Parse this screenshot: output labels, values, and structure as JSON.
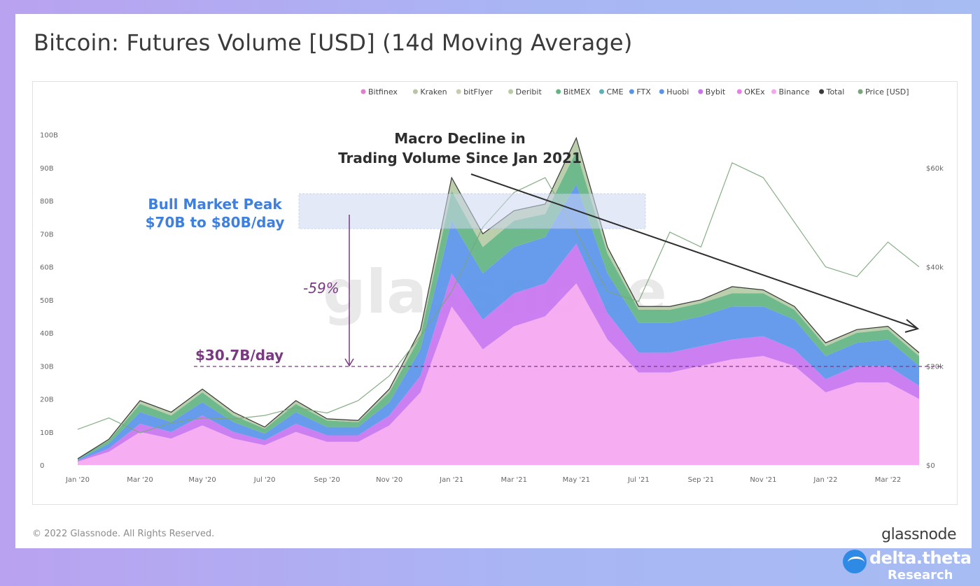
{
  "title": "Bitcoin: Futures Volume [USD] (14d Moving Average)",
  "footer": {
    "copyright": "© 2022 Glassnode. All Rights Reserved.",
    "brand": "glassnode"
  },
  "watermark": {
    "text": "glassnode"
  },
  "overlay_logo": {
    "name": "delta.theta",
    "sub": "Research"
  },
  "annotations": {
    "macro_decline_line1": "Macro Decline in",
    "macro_decline_line2": "Trading Volume Since Jan 2021",
    "bull_peak_line1": "Bull Market Peak",
    "bull_peak_line2": "$70B to $80B/day",
    "drop_pct": "-59%",
    "current_level": "$30.7B/day"
  },
  "colors": {
    "Bitfinex": "#e07fd0",
    "Kraken": "#b8c6a6",
    "bitFlyer": "#c8ccae",
    "Deribit": "#b6cba6",
    "BitMEX": "#62b483",
    "CME": "#5eb0b8",
    "FTX": "#5a93ea",
    "Huobi": "#5a93ea",
    "Bybit": "#c874f0",
    "OKEx": "#e87fe8",
    "Binance": "#f6a6f0",
    "Total": "#3a3a3a",
    "Price [USD]": "#7aa57a"
  },
  "chart_data": {
    "type": "area",
    "stacked": true,
    "legend": [
      "Bitfinex",
      "Kraken",
      "bitFlyer",
      "Deribit",
      "BitMEX",
      "CME",
      "FTX",
      "Huobi",
      "Bybit",
      "OKEx",
      "Binance",
      "Total",
      "Price [USD]"
    ],
    "legend_position": "top-right",
    "x_ticks": [
      "Jan '20",
      "Mar '20",
      "May '20",
      "Jul '20",
      "Sep '20",
      "Nov '20",
      "Jan '21",
      "Mar '21",
      "May '21",
      "Jul '21",
      "Sep '21",
      "Nov '21",
      "Jan '22",
      "Mar '22"
    ],
    "y_ticks": [
      "0",
      "10B",
      "20B",
      "30B",
      "40B",
      "50B",
      "60B",
      "70B",
      "80B",
      "90B",
      "100B"
    ],
    "y2_ticks": [
      "$0",
      "$20k",
      "$40k",
      "$60k"
    ],
    "ylim": [
      0,
      105
    ],
    "y2lim": [
      0,
      70
    ],
    "x": [
      "2020-01",
      "2020-02",
      "2020-03",
      "2020-04",
      "2020-05",
      "2020-06",
      "2020-07",
      "2020-08",
      "2020-09",
      "2020-10",
      "2020-11",
      "2020-12",
      "2021-01",
      "2021-02",
      "2021-03",
      "2021-04",
      "2021-05",
      "2021-06",
      "2021-07",
      "2021-08",
      "2021-09",
      "2021-10",
      "2021-11",
      "2021-12",
      "2022-01",
      "2022-02",
      "2022-03",
      "2022-04"
    ],
    "series": [
      {
        "name": "Binance",
        "values": [
          1,
          4,
          10,
          8,
          12,
          8,
          6,
          10,
          7,
          7,
          12,
          22,
          48,
          35,
          42,
          45,
          55,
          38,
          28,
          28,
          30,
          32,
          33,
          30,
          22,
          25,
          25,
          20
        ]
      },
      {
        "name": "Bybit",
        "values": [
          0.3,
          1,
          2.5,
          2,
          3,
          2,
          1.5,
          2.5,
          2,
          2,
          3,
          5,
          10,
          9,
          10,
          10,
          12,
          8,
          6,
          6,
          6,
          6,
          6,
          5,
          4,
          5,
          5,
          4
        ]
      },
      {
        "name": "FTX",
        "values": [
          0.3,
          1.5,
          3.5,
          3,
          4,
          3,
          2,
          3.5,
          2.5,
          2.5,
          4,
          8,
          16,
          14,
          14,
          14,
          18,
          12,
          9,
          9,
          9,
          10,
          9,
          9,
          7,
          7,
          8,
          6
        ]
      },
      {
        "name": "BitMEX",
        "values": [
          0.3,
          1,
          2.5,
          2,
          3,
          2,
          1.5,
          2.5,
          2,
          1.5,
          3,
          4,
          9,
          8,
          8,
          7,
          10,
          6,
          4,
          4,
          4,
          4,
          4,
          3,
          3,
          3,
          3,
          3
        ]
      },
      {
        "name": "Deribit",
        "values": [
          0,
          0.3,
          1,
          1,
          1,
          1,
          0.5,
          1,
          0.5,
          0.5,
          1,
          2,
          4,
          4,
          3,
          3,
          4,
          2,
          1,
          1,
          1,
          2,
          1,
          1,
          1,
          1,
          1,
          1
        ]
      },
      {
        "name": "Price [USD]",
        "values": [
          7.2,
          9.5,
          6.5,
          8.5,
          9.5,
          9.3,
          10,
          11.6,
          10.5,
          13,
          18,
          26,
          35,
          48,
          55,
          58,
          47,
          35,
          33,
          47,
          44,
          61,
          58,
          49,
          40,
          38,
          45,
          40
        ]
      }
    ],
    "total": [
      1.9,
      7.8,
      19.5,
      16,
      23,
      16,
      11.5,
      19.5,
      14,
      13.5,
      23,
      41,
      87,
      70,
      77,
      79,
      99,
      66,
      48,
      48,
      50,
      54,
      53,
      48,
      37,
      41,
      42,
      34
    ]
  }
}
